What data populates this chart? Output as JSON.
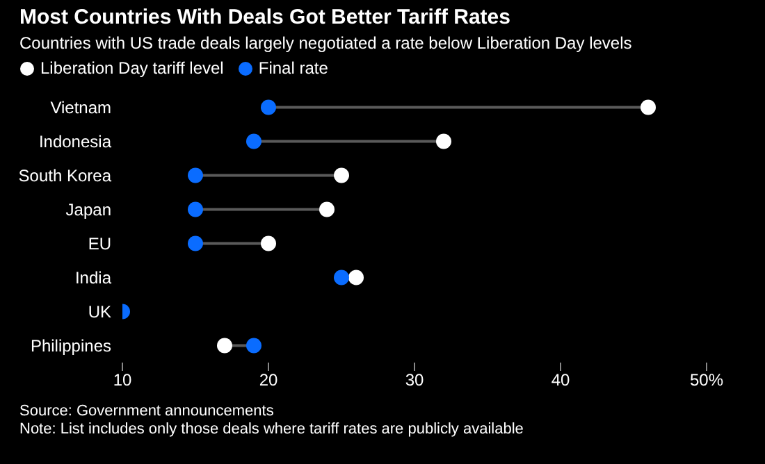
{
  "chart_data": {
    "type": "scatter",
    "title": "Most Countries With Deals Got Better Tariff Rates",
    "subtitle": "Countries with US trade deals largely negotiated a rate below Liberation Day levels",
    "orientation": "horizontal",
    "categories": [
      "Vietnam",
      "Indonesia",
      "South Korea",
      "Japan",
      "EU",
      "India",
      "UK",
      "Philippines"
    ],
    "series": [
      {
        "name": "Liberation Day tariff level",
        "color": "#ffffff",
        "values": [
          46,
          32,
          25,
          24,
          20,
          26,
          null,
          17
        ]
      },
      {
        "name": "Final rate",
        "color": "#0a6cff",
        "values": [
          20,
          19,
          15,
          15,
          15,
          25,
          10,
          19
        ]
      }
    ],
    "xlim": [
      10,
      50
    ],
    "xticks": [
      10,
      20,
      30,
      40,
      {
        "value": 50,
        "label": "50%"
      }
    ],
    "legend": "top left",
    "marker": "circle",
    "annotations": [
      "Source: Government announcements",
      "Note: List includes only those deals where tariff rates are publicly available"
    ]
  }
}
